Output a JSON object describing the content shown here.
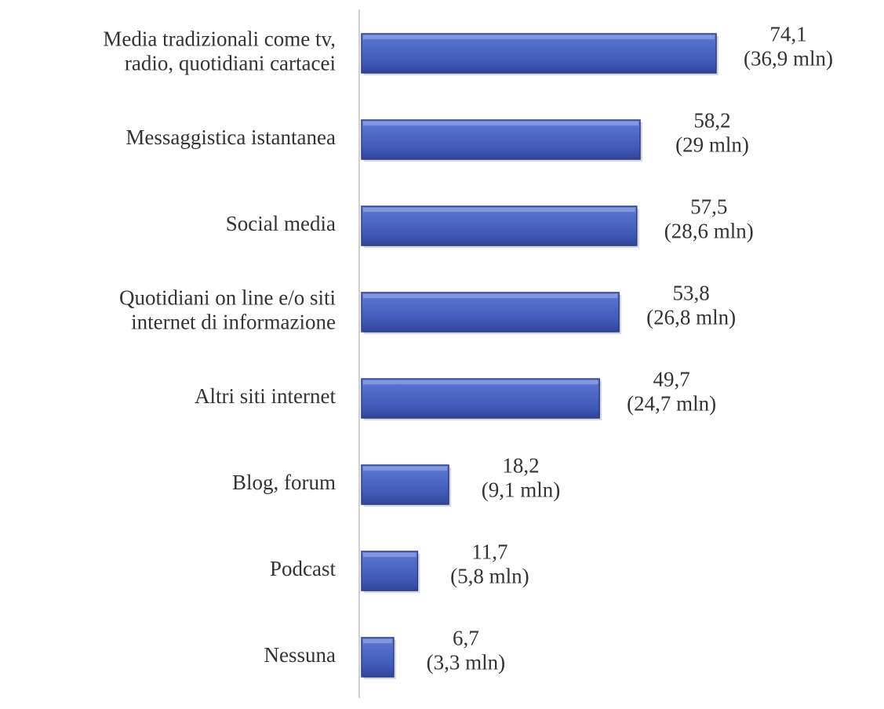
{
  "chart_data": {
    "type": "bar",
    "orientation": "horizontal",
    "title": "",
    "xlabel": "",
    "ylabel": "",
    "xlim": [
      0,
      100
    ],
    "grid": false,
    "legend": "none",
    "bar_color": "#4a63c0",
    "bar_edge_color": "#2c3d84",
    "categories": [
      [
        "Media tradizionali come tv,",
        "radio, quotidiani cartacei"
      ],
      [
        "Messaggistica istantanea"
      ],
      [
        "Social media"
      ],
      [
        "Quotidiani on line e/o siti",
        "internet di informazione"
      ],
      [
        "Altri siti internet"
      ],
      [
        "Blog, forum"
      ],
      [
        "Podcast"
      ],
      [
        "Nessuna"
      ]
    ],
    "values": [
      74.1,
      58.2,
      57.5,
      53.8,
      49.7,
      18.2,
      11.7,
      6.7
    ],
    "value_labels": [
      "74,1",
      "58,2",
      "57,5",
      "53,8",
      "49,7",
      "18,2",
      "11,7",
      "6,7"
    ],
    "secondary_labels": [
      "(36,9 mln)",
      "(29 mln)",
      "(28,6 mln)",
      "(26,8 mln)",
      "(24,7 mln)",
      "(9,1 mln)",
      "(5,8 mln)",
      "(3,3 mln)"
    ]
  }
}
